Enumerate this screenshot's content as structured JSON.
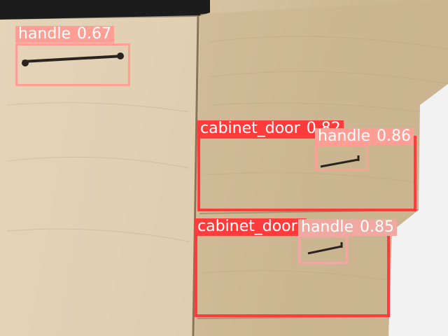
{
  "colors": {
    "cabinet_door": "#ff3b3b",
    "handle": "#ff9e94",
    "handle_dim": "#f0a8a0"
  },
  "detections": [
    {
      "id": "handle-1",
      "label": "handle",
      "score": "0.67",
      "class": "handle"
    },
    {
      "id": "cabinet-door-1",
      "label": "cabinet_door",
      "score": "0.82",
      "class": "cabinet_door"
    },
    {
      "id": "handle-2",
      "label": "handle",
      "score": "0.86",
      "class": "handle"
    },
    {
      "id": "cabinet-door-2",
      "label": "cabinet_door",
      "score": "",
      "class": "cabinet_door"
    },
    {
      "id": "handle-3",
      "label": "handle",
      "score": "0.85",
      "class": "handle"
    }
  ]
}
